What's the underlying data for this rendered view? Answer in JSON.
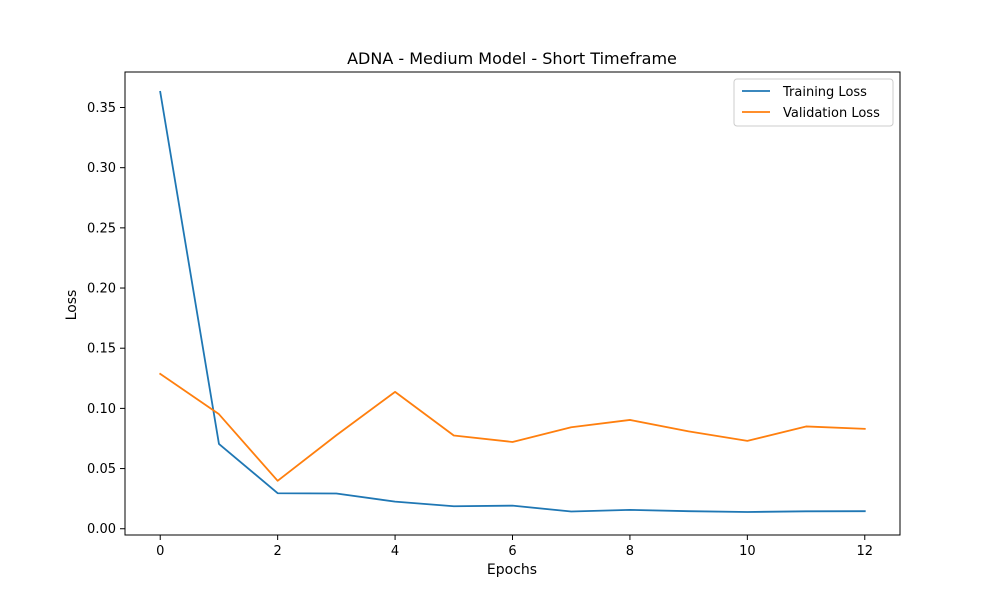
{
  "chart_data": {
    "type": "line",
    "title": "ADNA - Medium Model - Short Timeframe",
    "xlabel": "Epochs",
    "ylabel": "Loss",
    "x": [
      0,
      1,
      2,
      3,
      4,
      5,
      6,
      7,
      8,
      9,
      10,
      11,
      12
    ],
    "xlim": [
      -0.6,
      12.6
    ],
    "ylim": [
      -0.0052,
      0.3795
    ],
    "xticks": [
      0,
      2,
      4,
      6,
      8,
      10,
      12
    ],
    "xtick_labels": [
      "0",
      "2",
      "4",
      "6",
      "8",
      "10",
      "12"
    ],
    "yticks": [
      0.0,
      0.05,
      0.1,
      0.15,
      0.2,
      0.25,
      0.3,
      0.35
    ],
    "ytick_labels": [
      "0.00",
      "0.05",
      "0.10",
      "0.15",
      "0.20",
      "0.25",
      "0.30",
      "0.35"
    ],
    "grid": false,
    "legend_position": "top-right",
    "series": [
      {
        "name": "Training Loss",
        "color": "#1f77b4",
        "values": [
          0.363,
          0.0705,
          0.0295,
          0.0293,
          0.0225,
          0.0187,
          0.0192,
          0.0143,
          0.0157,
          0.0146,
          0.0139,
          0.0145,
          0.0146
        ]
      },
      {
        "name": "Validation Loss",
        "color": "#ff7f0e",
        "values": [
          0.1287,
          0.0952,
          0.0398,
          0.0777,
          0.1137,
          0.0775,
          0.0721,
          0.0843,
          0.0904,
          0.0809,
          0.073,
          0.085,
          0.083
        ]
      }
    ]
  }
}
